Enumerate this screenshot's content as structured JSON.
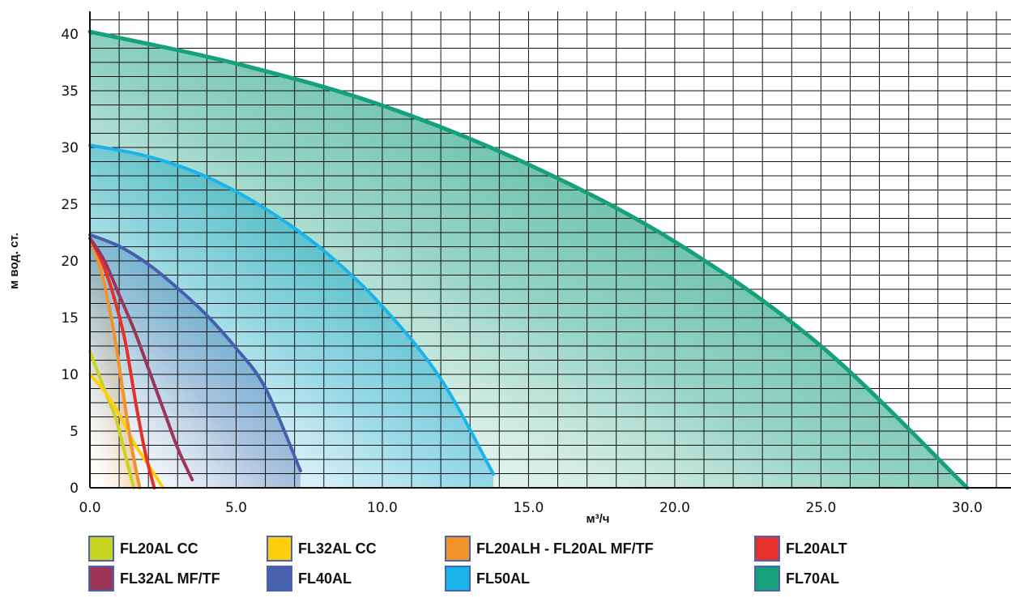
{
  "chart_data": {
    "type": "line",
    "title": "",
    "xlabel": "м³/ч",
    "ylabel": "м вод. ст.",
    "xlim": [
      0,
      31.5
    ],
    "ylim": [
      0,
      42
    ],
    "grid": true,
    "x_ticks": [
      {
        "value": 0,
        "label": "0.0"
      },
      {
        "value": 5,
        "label": "5.0"
      },
      {
        "value": 10,
        "label": "10.0"
      },
      {
        "value": 15,
        "label": "15.0"
      },
      {
        "value": 20,
        "label": "20.0"
      },
      {
        "value": 25,
        "label": "25.0"
      },
      {
        "value": 30,
        "label": "30.0"
      }
    ],
    "y_ticks": [
      {
        "value": 0,
        "label": "0"
      },
      {
        "value": 5,
        "label": "5"
      },
      {
        "value": 10,
        "label": "10"
      },
      {
        "value": 15,
        "label": "15"
      },
      {
        "value": 20,
        "label": "20"
      },
      {
        "value": 25,
        "label": "25"
      },
      {
        "value": 30,
        "label": "30"
      },
      {
        "value": 35,
        "label": "35"
      },
      {
        "value": 40,
        "label": "40"
      }
    ],
    "legend_position": "bottom",
    "series": [
      {
        "name": "FL20AL CC",
        "color": "#c8d41e",
        "fill": false,
        "points": [
          [
            0,
            12
          ],
          [
            0.3,
            10
          ],
          [
            0.6,
            8
          ],
          [
            0.9,
            6
          ],
          [
            1.2,
            3
          ],
          [
            1.5,
            0
          ]
        ]
      },
      {
        "name": "FL32AL CC",
        "color": "#ffcf0d",
        "fill": false,
        "points": [
          [
            0,
            10
          ],
          [
            0.5,
            8.5
          ],
          [
            1.0,
            6.5
          ],
          [
            1.5,
            4
          ],
          [
            2.0,
            2
          ],
          [
            2.5,
            0
          ]
        ]
      },
      {
        "name": "FL20ALH - FL20AL MF/TF",
        "color": "#f2922a",
        "fill": true,
        "fill_color": "#f5a442",
        "points": [
          [
            0,
            22
          ],
          [
            0.4,
            19
          ],
          [
            0.8,
            14
          ],
          [
            1.1,
            9
          ],
          [
            1.4,
            4
          ],
          [
            1.7,
            0
          ]
        ]
      },
      {
        "name": "FL20ALT",
        "color": "#e5312a",
        "fill": false,
        "points": [
          [
            0,
            22
          ],
          [
            0.4,
            20
          ],
          [
            0.8,
            17
          ],
          [
            1.2,
            13
          ],
          [
            1.6,
            7
          ],
          [
            1.9,
            3
          ],
          [
            2.2,
            0
          ]
        ]
      },
      {
        "name": "FL32AL MF/TF",
        "color": "#9c3558",
        "fill": false,
        "points": [
          [
            0,
            22
          ],
          [
            0.5,
            20
          ],
          [
            1.0,
            17
          ],
          [
            1.5,
            14
          ],
          [
            2.0,
            10.5
          ],
          [
            2.5,
            7
          ],
          [
            3.0,
            3.5
          ],
          [
            3.5,
            0.7
          ]
        ]
      },
      {
        "name": "FL40AL",
        "color": "#4760ad",
        "fill": true,
        "fill_color": "#5762b0",
        "points": [
          [
            0,
            22.3
          ],
          [
            1,
            21.3
          ],
          [
            2,
            19.7
          ],
          [
            3,
            17.6
          ],
          [
            4,
            15.2
          ],
          [
            5,
            12.3
          ],
          [
            6,
            8.8
          ],
          [
            7.2,
            1.5
          ]
        ]
      },
      {
        "name": "FL50AL",
        "color": "#1ab3ea",
        "fill": true,
        "fill_color": "#2eb5ee",
        "points": [
          [
            0,
            30.2
          ],
          [
            2,
            29.2
          ],
          [
            4,
            27.4
          ],
          [
            6,
            24.6
          ],
          [
            8,
            20.9
          ],
          [
            10,
            16
          ],
          [
            12,
            9.6
          ],
          [
            13.8,
            1.2
          ]
        ]
      },
      {
        "name": "FL70AL",
        "color": "#16a07c",
        "fill": true,
        "fill_color": "#17a07b",
        "points": [
          [
            0,
            40.2
          ],
          [
            5,
            37.4
          ],
          [
            10,
            33.7
          ],
          [
            15,
            28.5
          ],
          [
            20,
            21.7
          ],
          [
            25,
            12.5
          ],
          [
            30,
            0
          ]
        ]
      }
    ]
  }
}
